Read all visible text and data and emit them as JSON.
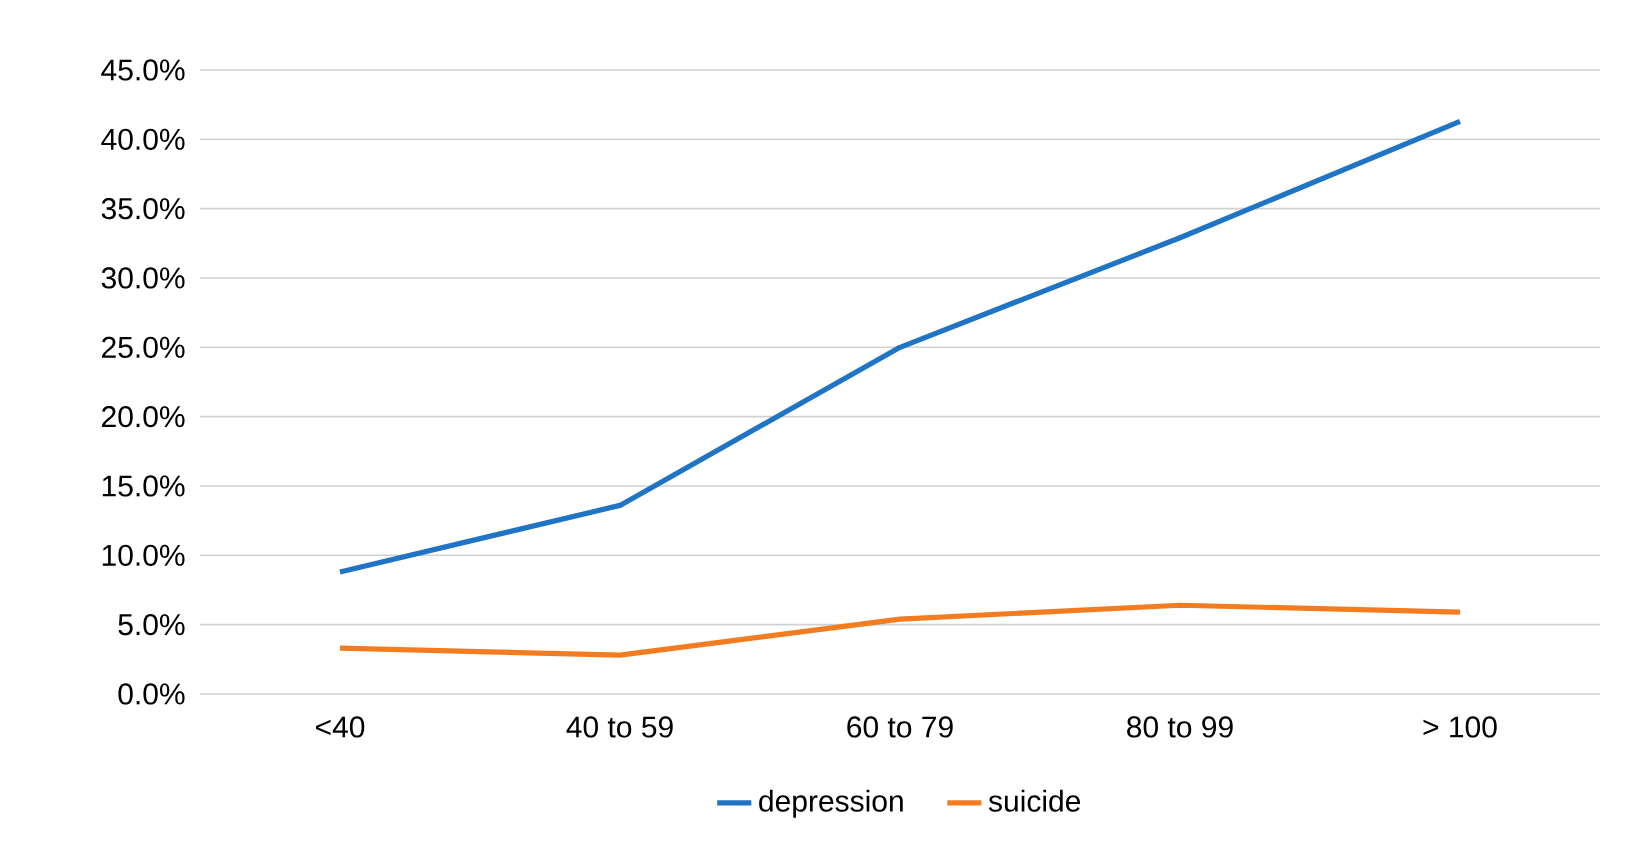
{
  "chart_data": {
    "type": "line",
    "categories": [
      "<40",
      "40 to 59",
      "60 to 79",
      "80 to 99",
      "> 100"
    ],
    "series": [
      {
        "name": "depression",
        "color": "#1f74c6",
        "values": [
          8.8,
          13.6,
          25.0,
          32.9,
          41.3
        ]
      },
      {
        "name": "suicide",
        "color": "#f47c20",
        "values": [
          3.3,
          2.8,
          5.4,
          6.4,
          5.9
        ]
      }
    ],
    "ylim": [
      0,
      45
    ],
    "yticks": [
      {
        "value": 0,
        "label": "0.0%"
      },
      {
        "value": 5,
        "label": "5.0%"
      },
      {
        "value": 10,
        "label": "10.0%"
      },
      {
        "value": 15,
        "label": "15.0%"
      },
      {
        "value": 20,
        "label": "20.0%"
      },
      {
        "value": 25,
        "label": "25.0%"
      },
      {
        "value": 30,
        "label": "30.0%"
      },
      {
        "value": 35,
        "label": "35.0%"
      },
      {
        "value": 40,
        "label": "40.0%"
      },
      {
        "value": 45,
        "label": "45.0%"
      }
    ],
    "grid": "y",
    "legend": "bottom",
    "marker": "none",
    "line_style": "solid"
  }
}
